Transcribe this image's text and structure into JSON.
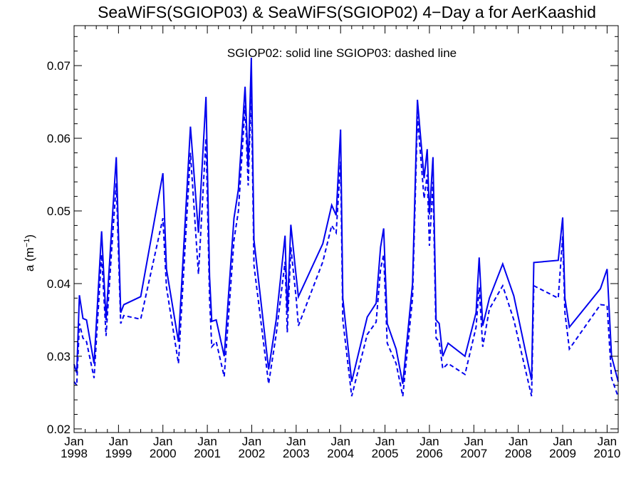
{
  "chart_data": {
    "type": "line",
    "title": "SeaWiFS(SGIOP03) & SeaWiFS(SGIOP02) 4−Day a for AerKaashid",
    "annotation": "SGIOP02: solid line   SGIOP03: dashed line",
    "ylabel": "a (m",
    "ylabel_sup": "−1",
    "ylabel_close": ")",
    "xlim": [
      1998.0,
      2010.25
    ],
    "ylim": [
      0.0195,
      0.0755
    ],
    "yticks": [
      0.02,
      0.03,
      0.04,
      0.05,
      0.06,
      0.07
    ],
    "ytick_labels": [
      "0.02",
      "0.03",
      "0.04",
      "0.05",
      "0.06",
      "0.07"
    ],
    "xticks": [
      {
        "value": 1998,
        "month": "Jan",
        "year": "1998"
      },
      {
        "value": 1999,
        "month": "Jan",
        "year": "1999"
      },
      {
        "value": 2000,
        "month": "Jan",
        "year": "2000"
      },
      {
        "value": 2001,
        "month": "Jan",
        "year": "2001"
      },
      {
        "value": 2002,
        "month": "Jan",
        "year": "2002"
      },
      {
        "value": 2003,
        "month": "Jan",
        "year": "2003"
      },
      {
        "value": 2004,
        "month": "Jan",
        "year": "2004"
      },
      {
        "value": 2005,
        "month": "Jan",
        "year": "2005"
      },
      {
        "value": 2006,
        "month": "Jan",
        "year": "2006"
      },
      {
        "value": 2007,
        "month": "Jan",
        "year": "2007"
      },
      {
        "value": 2008,
        "month": "Jan",
        "year": "2008"
      },
      {
        "value": 2009,
        "month": "Jan",
        "year": "2009"
      },
      {
        "value": 2010,
        "month": "Jan",
        "year": "2010"
      }
    ],
    "line_color": "#0000ee",
    "series": [
      {
        "name": "SGIOP02",
        "style": "solid",
        "points": [
          [
            1998.0,
            0.0289
          ],
          [
            1998.06,
            0.0277
          ],
          [
            1998.12,
            0.0384
          ],
          [
            1998.2,
            0.0352
          ],
          [
            1998.28,
            0.035
          ],
          [
            1998.45,
            0.029
          ],
          [
            1998.62,
            0.0472
          ],
          [
            1998.72,
            0.035
          ],
          [
            1998.85,
            0.048
          ],
          [
            1998.95,
            0.0574
          ],
          [
            1999.05,
            0.036
          ],
          [
            1999.12,
            0.0371
          ],
          [
            1999.5,
            0.0382
          ],
          [
            2000.0,
            0.0552
          ],
          [
            2000.08,
            0.042
          ],
          [
            2000.35,
            0.032
          ],
          [
            2000.62,
            0.0616
          ],
          [
            2000.8,
            0.047
          ],
          [
            2000.97,
            0.0657
          ],
          [
            2001.05,
            0.041
          ],
          [
            2001.1,
            0.0348
          ],
          [
            2001.2,
            0.035
          ],
          [
            2001.38,
            0.03
          ],
          [
            2001.6,
            0.049
          ],
          [
            2001.7,
            0.053
          ],
          [
            2001.85,
            0.0671
          ],
          [
            2001.92,
            0.056
          ],
          [
            2001.99,
            0.0711
          ],
          [
            2002.05,
            0.046
          ],
          [
            2002.38,
            0.0282
          ],
          [
            2002.55,
            0.035
          ],
          [
            2002.75,
            0.0466
          ],
          [
            2002.8,
            0.036
          ],
          [
            2002.88,
            0.0481
          ],
          [
            2003.0,
            0.041
          ],
          [
            2003.05,
            0.0382
          ],
          [
            2003.6,
            0.0455
          ],
          [
            2003.8,
            0.0508
          ],
          [
            2003.9,
            0.0494
          ],
          [
            2004.0,
            0.0612
          ],
          [
            2004.05,
            0.038
          ],
          [
            2004.25,
            0.0265
          ],
          [
            2004.6,
            0.0354
          ],
          [
            2004.8,
            0.0373
          ],
          [
            2004.9,
            0.045
          ],
          [
            2004.97,
            0.0476
          ],
          [
            2005.05,
            0.0345
          ],
          [
            2005.25,
            0.031
          ],
          [
            2005.4,
            0.0262
          ],
          [
            2005.62,
            0.04
          ],
          [
            2005.73,
            0.0653
          ],
          [
            2005.88,
            0.0545
          ],
          [
            2005.95,
            0.0585
          ],
          [
            2006.0,
            0.0495
          ],
          [
            2006.08,
            0.0574
          ],
          [
            2006.15,
            0.035
          ],
          [
            2006.22,
            0.0345
          ],
          [
            2006.3,
            0.03
          ],
          [
            2006.42,
            0.0318
          ],
          [
            2006.8,
            0.03
          ],
          [
            2007.05,
            0.036
          ],
          [
            2007.12,
            0.0436
          ],
          [
            2007.2,
            0.0342
          ],
          [
            2007.35,
            0.038
          ],
          [
            2007.65,
            0.0427
          ],
          [
            2007.9,
            0.0383
          ],
          [
            2008.3,
            0.0267
          ],
          [
            2008.35,
            0.0429
          ],
          [
            2008.9,
            0.0432
          ],
          [
            2009.0,
            0.0491
          ],
          [
            2009.05,
            0.038
          ],
          [
            2009.15,
            0.034
          ],
          [
            2009.85,
            0.0393
          ],
          [
            2010.0,
            0.042
          ],
          [
            2010.1,
            0.03
          ],
          [
            2010.25,
            0.0265
          ]
        ]
      },
      {
        "name": "SGIOP03",
        "style": "dashed",
        "points": [
          [
            1998.0,
            0.0265
          ],
          [
            1998.06,
            0.026
          ],
          [
            1998.12,
            0.0345
          ],
          [
            1998.2,
            0.0325
          ],
          [
            1998.28,
            0.032
          ],
          [
            1998.45,
            0.027
          ],
          [
            1998.62,
            0.044
          ],
          [
            1998.72,
            0.0328
          ],
          [
            1998.85,
            0.045
          ],
          [
            1998.95,
            0.0538
          ],
          [
            1999.05,
            0.0345
          ],
          [
            1999.12,
            0.0356
          ],
          [
            1999.5,
            0.0351
          ],
          [
            2000.0,
            0.049
          ],
          [
            2000.08,
            0.0395
          ],
          [
            2000.35,
            0.029
          ],
          [
            2000.62,
            0.058
          ],
          [
            2000.8,
            0.0413
          ],
          [
            2000.97,
            0.06
          ],
          [
            2001.05,
            0.038
          ],
          [
            2001.1,
            0.0313
          ],
          [
            2001.2,
            0.032
          ],
          [
            2001.38,
            0.0272
          ],
          [
            2001.6,
            0.046
          ],
          [
            2001.7,
            0.05
          ],
          [
            2001.85,
            0.0645
          ],
          [
            2001.92,
            0.0535
          ],
          [
            2001.99,
            0.067
          ],
          [
            2002.05,
            0.0425
          ],
          [
            2002.38,
            0.0262
          ],
          [
            2002.55,
            0.033
          ],
          [
            2002.75,
            0.043
          ],
          [
            2002.8,
            0.0333
          ],
          [
            2002.88,
            0.045
          ],
          [
            2003.0,
            0.038
          ],
          [
            2003.05,
            0.0342
          ],
          [
            2003.6,
            0.043
          ],
          [
            2003.8,
            0.048
          ],
          [
            2003.9,
            0.047
          ],
          [
            2004.0,
            0.0568
          ],
          [
            2004.05,
            0.035
          ],
          [
            2004.25,
            0.0245
          ],
          [
            2004.6,
            0.033
          ],
          [
            2004.8,
            0.0347
          ],
          [
            2004.9,
            0.042
          ],
          [
            2004.97,
            0.044
          ],
          [
            2005.05,
            0.0318
          ],
          [
            2005.25,
            0.029
          ],
          [
            2005.4,
            0.0245
          ],
          [
            2005.62,
            0.038
          ],
          [
            2005.73,
            0.063
          ],
          [
            2005.88,
            0.0517
          ],
          [
            2005.95,
            0.055
          ],
          [
            2006.0,
            0.0452
          ],
          [
            2006.08,
            0.054
          ],
          [
            2006.15,
            0.0325
          ],
          [
            2006.22,
            0.032
          ],
          [
            2006.3,
            0.0283
          ],
          [
            2006.42,
            0.029
          ],
          [
            2006.8,
            0.0275
          ],
          [
            2007.05,
            0.034
          ],
          [
            2007.12,
            0.0395
          ],
          [
            2007.2,
            0.0313
          ],
          [
            2007.35,
            0.0365
          ],
          [
            2007.65,
            0.0397
          ],
          [
            2007.9,
            0.035
          ],
          [
            2008.3,
            0.0245
          ],
          [
            2008.35,
            0.0397
          ],
          [
            2008.9,
            0.038
          ],
          [
            2009.0,
            0.0465
          ],
          [
            2009.05,
            0.036
          ],
          [
            2009.15,
            0.031
          ],
          [
            2009.85,
            0.0371
          ],
          [
            2010.0,
            0.037
          ],
          [
            2010.1,
            0.027
          ],
          [
            2010.25,
            0.0244
          ]
        ]
      }
    ]
  }
}
